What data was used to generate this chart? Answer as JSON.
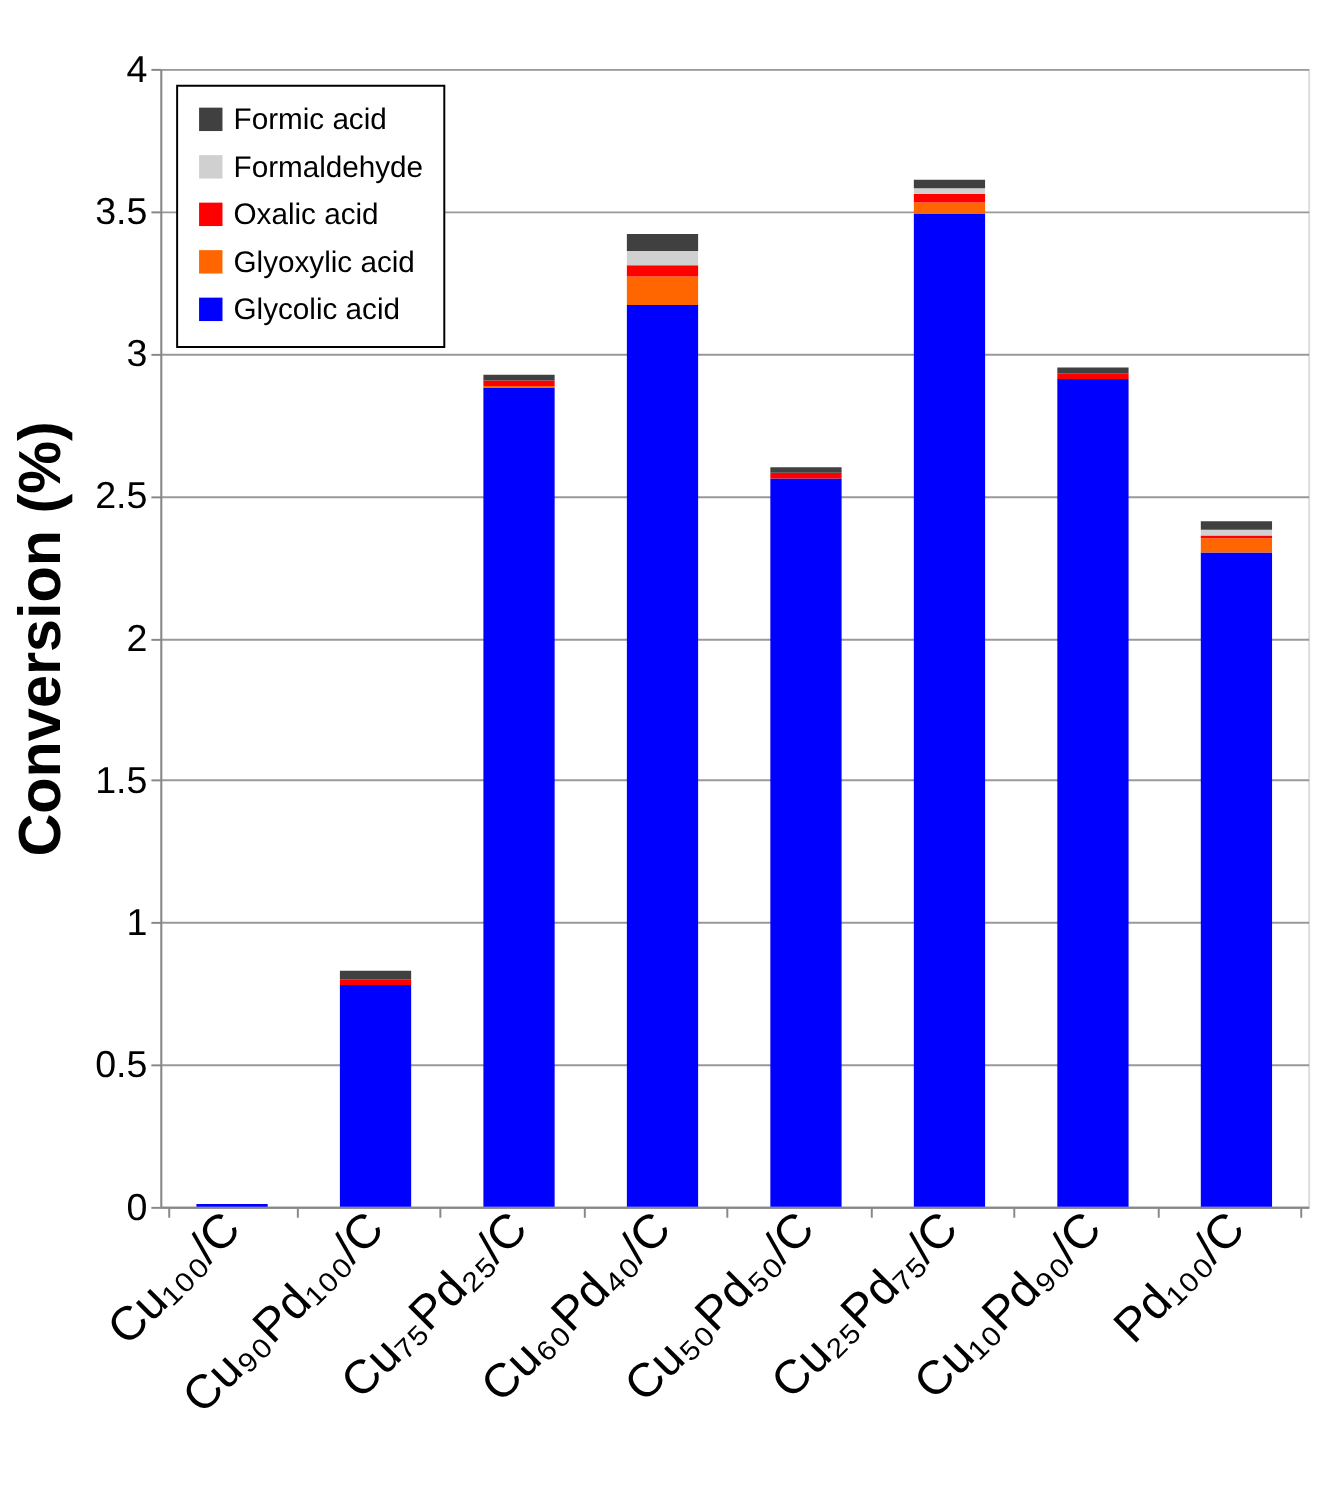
{
  "chart_data": {
    "type": "bar",
    "stacked": true,
    "ylabel": "Conversion (%)",
    "categories": [
      "Cu₁₀₀/C",
      "Cu₉₀Pd₁₀₀/C",
      "Cu₇₅Pd₂₅/C",
      "Cu₆₀Pd₄₀/C",
      "Cu₅₀Pd₅₀/C",
      "Cu₂₅Pd₇₅/C",
      "Cu₁₀Pd₉₀/C",
      "Pd₁₀₀/C"
    ],
    "series": [
      {
        "name": "Glycolic acid",
        "color": "#0000ff",
        "values": [
          0.01,
          0.78,
          2.88,
          3.17,
          2.56,
          3.49,
          2.91,
          2.3
        ]
      },
      {
        "name": "Glyoxylic acid",
        "color": "#ff6600",
        "values": [
          0,
          0,
          0.005,
          0.1,
          0,
          0.04,
          0,
          0.05
        ]
      },
      {
        "name": "Oxalic acid",
        "color": "#ff0000",
        "values": [
          0,
          0.02,
          0.02,
          0.04,
          0.02,
          0.03,
          0.02,
          0.01
        ]
      },
      {
        "name": "Formaldehyde",
        "color": "#d0d0d0",
        "values": [
          0,
          null,
          null,
          0.05,
          null,
          0.02,
          null,
          0.02
        ]
      },
      {
        "name": "Formic acid",
        "color": "#404040",
        "values": [
          0,
          0.03,
          0.02,
          0.06,
          0.02,
          0.03,
          0.02,
          0.03
        ]
      }
    ],
    "ylim": [
      0,
      4
    ],
    "yticks": [
      0,
      0.5,
      1,
      1.5,
      2,
      2.5,
      3,
      3.5,
      4
    ],
    "grid": "y",
    "legend": "top left"
  }
}
